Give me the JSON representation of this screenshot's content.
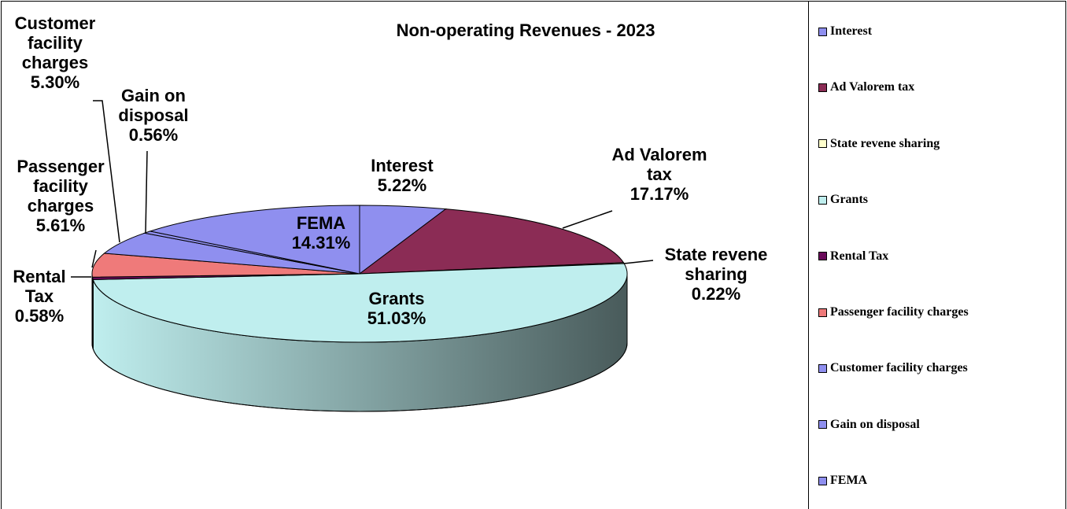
{
  "chart_data": {
    "type": "pie",
    "title": "Non-operating Revenues - 2023",
    "categories": [
      "Interest",
      "Ad Valorem tax",
      "State revene sharing",
      "Grants",
      "Rental Tax",
      "Passenger facility charges",
      "Customer facility charges",
      "Gain on disposal",
      "FEMA"
    ],
    "values": [
      5.22,
      17.17,
      0.22,
      51.03,
      0.58,
      5.61,
      5.3,
      0.56,
      14.31
    ],
    "value_labels": [
      "5.22%",
      "17.17%",
      "0.22%",
      "51.03%",
      "0.58%",
      "5.61%",
      "5.30%",
      "0.56%",
      "14.31%"
    ],
    "colors": [
      "#8f8fef",
      "#8b2c55",
      "#ffffcc",
      "#bfeeee",
      "#6a0a5a",
      "#ef7a7a",
      "#8f8fef",
      "#8f8fef",
      "#8f8fef"
    ],
    "legend": "right"
  }
}
